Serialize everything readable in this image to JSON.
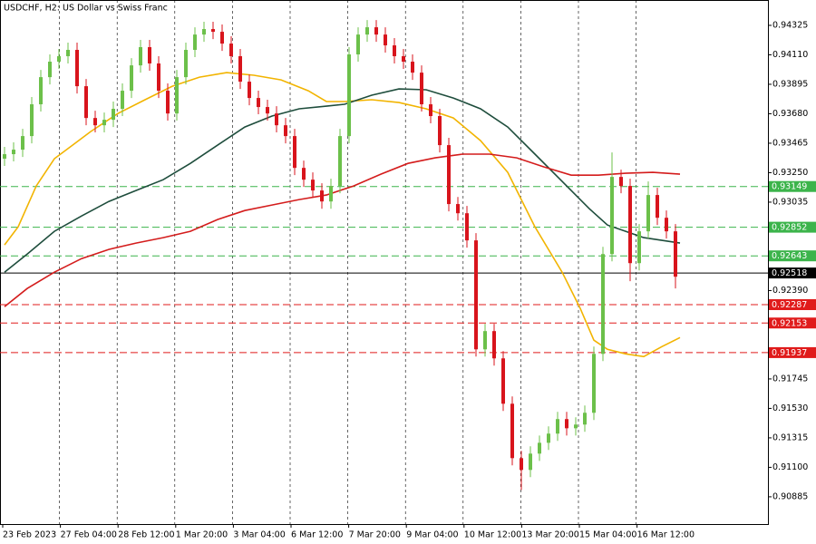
{
  "chart_data": {
    "type": "candlestick",
    "title": "USDCHF, H2:  US Dollar vs Swiss Franc",
    "up_color": "#6cc04a",
    "down_color": "#d8141c",
    "open": [
      0.93352,
      0.93385,
      0.93418,
      0.93517,
      0.93749,
      0.93947,
      0.9406,
      0.941,
      0.94146,
      0.93881,
      0.93649,
      0.93596,
      0.93636,
      0.93716,
      0.93848,
      0.94033,
      0.94166,
      0.94047,
      0.93848,
      0.93682,
      0.93947,
      0.94146,
      0.94258,
      0.94298,
      0.94278,
      0.94192,
      0.941,
      0.93914,
      0.93795,
      0.93729,
      0.93682,
      0.93596,
      0.93517,
      0.93285,
      0.93199,
      0.9312,
      0.9304,
      0.93153,
      0.93517,
      0.94113,
      0.94258,
      0.94311,
      0.94258,
      0.94179,
      0.941,
      0.9406,
      0.9398,
      0.93749,
      0.93663,
      0.93451,
      0.93021,
      0.92954,
      0.92756,
      0.91961,
      0.92094,
      0.91895,
      0.91564,
      0.91167,
      0.91081,
      0.912,
      0.91279,
      0.91346,
      0.91452,
      0.91385,
      0.91412,
      0.91498,
      0.91928,
      0.92656,
      0.93219,
      0.93153,
      0.9259,
      0.92822,
      0.93087,
      0.92921,
      0.92822
    ],
    "high": [
      0.93438,
      0.93471,
      0.9357,
      0.93802,
      0.94,
      0.94113,
      0.94153,
      0.94199,
      0.94199,
      0.93934,
      0.93702,
      0.93689,
      0.93769,
      0.93901,
      0.94086,
      0.94219,
      0.94219,
      0.941,
      0.93901,
      0.94,
      0.94199,
      0.94311,
      0.94351,
      0.94351,
      0.94331,
      0.94245,
      0.94153,
      0.93967,
      0.93848,
      0.93782,
      0.93735,
      0.93649,
      0.9357,
      0.93338,
      0.93252,
      0.93173,
      0.93206,
      0.9357,
      0.94166,
      0.94311,
      0.94364,
      0.94364,
      0.94311,
      0.94232,
      0.94153,
      0.94113,
      0.94033,
      0.93802,
      0.93716,
      0.93504,
      0.93073,
      0.93007,
      0.92809,
      0.92147,
      0.92147,
      0.91948,
      0.91617,
      0.9122,
      0.91253,
      0.91332,
      0.91399,
      0.91505,
      0.91505,
      0.91465,
      0.91551,
      0.91981,
      0.92709,
      0.93398,
      0.93272,
      0.93206,
      0.92875,
      0.93186,
      0.9314,
      0.92974,
      0.92875
    ],
    "low": [
      0.93299,
      0.93332,
      0.93365,
      0.93464,
      0.93696,
      0.93894,
      0.94007,
      0.94047,
      0.93828,
      0.93596,
      0.93544,
      0.93544,
      0.93583,
      0.93663,
      0.93795,
      0.9398,
      0.93994,
      0.93795,
      0.9363,
      0.9363,
      0.93894,
      0.94093,
      0.94205,
      0.94225,
      0.94139,
      0.94047,
      0.93861,
      0.93742,
      0.93676,
      0.9363,
      0.93544,
      0.93464,
      0.93232,
      0.93146,
      0.93067,
      0.92987,
      0.92987,
      0.931,
      0.93464,
      0.9406,
      0.94205,
      0.94205,
      0.94126,
      0.94047,
      0.94007,
      0.93927,
      0.93696,
      0.9361,
      0.93398,
      0.92968,
      0.92901,
      0.92703,
      0.91908,
      0.91908,
      0.91842,
      0.91511,
      0.91114,
      0.90935,
      0.91028,
      0.91147,
      0.91227,
      0.91293,
      0.91332,
      0.91332,
      0.91359,
      0.91445,
      0.91875,
      0.92603,
      0.931,
      0.92458,
      0.92537,
      0.92769,
      0.92868,
      0.92769,
      0.92405
    ],
    "close": [
      0.93385,
      0.93418,
      0.93517,
      0.93749,
      0.93947,
      0.9406,
      0.941,
      0.94146,
      0.93881,
      0.93649,
      0.93596,
      0.93636,
      0.93716,
      0.93848,
      0.94033,
      0.94166,
      0.94047,
      0.93848,
      0.93682,
      0.93947,
      0.94146,
      0.94258,
      0.94298,
      0.94278,
      0.94192,
      0.941,
      0.93914,
      0.93795,
      0.93729,
      0.93682,
      0.93596,
      0.93517,
      0.93285,
      0.93199,
      0.9312,
      0.9304,
      0.93153,
      0.93517,
      0.94113,
      0.94258,
      0.94311,
      0.94258,
      0.94179,
      0.941,
      0.9406,
      0.9398,
      0.93749,
      0.93663,
      0.93451,
      0.93021,
      0.92954,
      0.92756,
      0.91961,
      0.92094,
      0.91895,
      0.91564,
      0.91167,
      0.91081,
      0.912,
      0.91279,
      0.91346,
      0.91452,
      0.91385,
      0.91412,
      0.91498,
      0.91928,
      0.92656,
      0.93219,
      0.93153,
      0.9259,
      0.92822,
      0.93087,
      0.92921,
      0.92822,
      0.92491
    ],
    "moving_averages": [
      {
        "color": "#f2b400",
        "x": [
          0,
          1.5,
          3.5,
          5.5,
          7.5,
          9.5,
          12.5,
          15.5,
          18.5,
          21.5,
          24.5,
          27.5,
          30.5,
          33.5,
          35.5,
          37.5,
          40.5,
          43.5,
          46.5,
          49.5,
          52.5,
          55.5,
          58.5,
          61.5,
          63.5,
          65,
          66.5,
          68.5,
          70.5,
          72.5,
          74.5
        ],
        "values": [
          0.92723,
          0.92855,
          0.93153,
          0.93352,
          0.93451,
          0.9355,
          0.93682,
          0.93782,
          0.93881,
          0.93947,
          0.9398,
          0.93961,
          0.93927,
          0.93848,
          0.93769,
          0.93769,
          0.93782,
          0.93762,
          0.93716,
          0.93649,
          0.93484,
          0.93252,
          0.92855,
          0.92524,
          0.92259,
          0.92028,
          0.91961,
          0.91928,
          0.91908,
          0.91981,
          0.92047
        ]
      },
      {
        "color": "#1e4d3c",
        "x": [
          0,
          2.5,
          5.5,
          8.5,
          11.5,
          14.5,
          17.5,
          20.5,
          23.5,
          26.5,
          29.5,
          32.5,
          35.5,
          37.5,
          40.5,
          43.5,
          46.5,
          49.5,
          52.5,
          55.5,
          58.5,
          61.5,
          64.5,
          66.5,
          68.5,
          70.5,
          72.5,
          74.5
        ],
        "values": [
          0.92524,
          0.92656,
          0.92822,
          0.92934,
          0.9304,
          0.9312,
          0.93199,
          0.93318,
          0.93451,
          0.93583,
          0.93663,
          0.93716,
          0.93735,
          0.93749,
          0.93815,
          0.93861,
          0.93855,
          0.93795,
          0.93716,
          0.93583,
          0.93385,
          0.93186,
          0.92987,
          0.92868,
          0.92822,
          0.92776,
          0.92756,
          0.92736
        ]
      },
      {
        "color": "#d41c1c",
        "x": [
          0,
          2.5,
          5.5,
          8.5,
          11.5,
          14.5,
          17.5,
          20.5,
          23.5,
          26.5,
          29.5,
          32.5,
          35.5,
          38.5,
          41.5,
          44.5,
          47.5,
          50.5,
          53.5,
          56.5,
          59.5,
          62.5,
          65.5,
          68.5,
          71.5,
          74.5
        ],
        "values": [
          0.92272,
          0.92405,
          0.92524,
          0.92623,
          0.9269,
          0.92736,
          0.92776,
          0.92822,
          0.92908,
          0.92974,
          0.93014,
          0.93054,
          0.93087,
          0.93153,
          0.93239,
          0.93318,
          0.93358,
          0.93385,
          0.93385,
          0.93358,
          0.93292,
          0.93232,
          0.93232,
          0.93246,
          0.93252,
          0.93239
        ]
      }
    ],
    "levels": [
      {
        "value": 0.93149,
        "color": "#3cb44b",
        "style": "dashed"
      },
      {
        "value": 0.92852,
        "color": "#3cb44b",
        "style": "dashed"
      },
      {
        "value": 0.92643,
        "color": "#3cb44b",
        "style": "dashed"
      },
      {
        "value": 0.92518,
        "color": "#000000",
        "style": "solid"
      },
      {
        "value": 0.92287,
        "color": "#e01b1b",
        "style": "dashed"
      },
      {
        "value": 0.92153,
        "color": "#e01b1b",
        "style": "dashed"
      },
      {
        "value": 0.91937,
        "color": "#e01b1b",
        "style": "dashed"
      }
    ],
    "ylim": [
      0.90686,
      0.9451
    ],
    "yticks": [
      0.94325,
      {
        "value": 0.9411,
        "label": "0.94110"
      },
      0.93895,
      {
        "value": 0.9368,
        "label": "0.93680"
      },
      0.93465,
      {
        "value": 0.9325,
        "label": "0.93250"
      },
      0.93035,
      {
        "value": 0.9239,
        "label": "0.92390"
      },
      0.91745,
      {
        "value": 0.9153,
        "label": "0.91530"
      },
      0.91315,
      {
        "value": 0.911,
        "label": "0.91100"
      },
      0.90885
    ],
    "xticks": [
      "23 Feb 2023",
      "27 Feb 04:00",
      "28 Feb 12:00",
      "1 Mar 20:00",
      "3 Mar 04:00",
      "6 Mar 12:00",
      "7 Mar 20:00",
      "9 Mar 04:00",
      "10 Mar 12:00",
      "13 Mar 20:00",
      "15 Mar 04:00",
      "16 Mar 12:00"
    ],
    "grid": true
  }
}
